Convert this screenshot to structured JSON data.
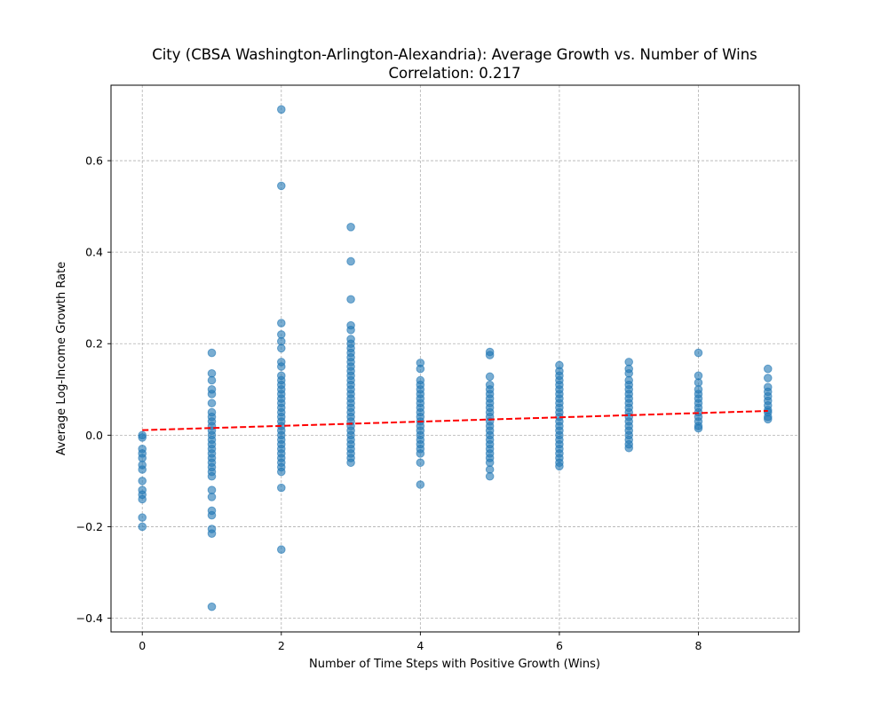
{
  "chart_data": {
    "type": "scatter",
    "title": "City (CBSA Washington-Arlington-Alexandria): Average Growth vs. Number of Wins",
    "subtitle": "Correlation: 0.217",
    "xlabel": "Number of Time Steps with Positive Growth (Wins)",
    "ylabel": "Average Log-Income Growth Rate",
    "xlim": [
      -0.45,
      9.45
    ],
    "ylim": [
      -0.43,
      0.765
    ],
    "xticks": [
      0,
      2,
      4,
      6,
      8
    ],
    "yticks": [
      -0.4,
      -0.2,
      0.0,
      0.2,
      0.4,
      0.6
    ],
    "xtick_labels": [
      "0",
      "2",
      "4",
      "6",
      "8"
    ],
    "ytick_labels": [
      "−0.4",
      "−0.2",
      "0.0",
      "0.2",
      "0.4",
      "0.6"
    ],
    "grid": true,
    "colors": {
      "points": "#1f77b4",
      "trend": "#ff0000"
    },
    "point_alpha": 0.6,
    "trend_line": {
      "style": "dashed",
      "x": [
        0,
        9
      ],
      "y": [
        0.011,
        0.053
      ]
    },
    "series": [
      {
        "values": [
          {
            "x": 0,
            "y": [
              0.0,
              -0.005,
              -0.03,
              -0.04,
              -0.05,
              -0.065,
              -0.075,
              -0.1,
              -0.12,
              -0.13,
              -0.14,
              -0.18,
              -0.2
            ]
          },
          {
            "x": 1,
            "y": [
              0.18,
              0.135,
              0.12,
              0.1,
              0.09,
              0.07,
              0.05,
              0.04,
              0.03,
              0.02,
              0.01,
              0.0,
              -0.01,
              -0.02,
              -0.03,
              -0.04,
              -0.05,
              -0.06,
              -0.07,
              -0.08,
              -0.09,
              -0.12,
              -0.135,
              -0.165,
              -0.175,
              -0.205,
              -0.215,
              -0.375
            ]
          },
          {
            "x": 2,
            "y": [
              0.712,
              0.545,
              0.245,
              0.22,
              0.205,
              0.19,
              0.16,
              0.15,
              0.13,
              0.12,
              0.11,
              0.1,
              0.09,
              0.08,
              0.07,
              0.06,
              0.05,
              0.04,
              0.03,
              0.02,
              0.01,
              0.0,
              -0.01,
              -0.02,
              -0.03,
              -0.04,
              -0.05,
              -0.06,
              -0.07,
              -0.08,
              -0.115,
              -0.25
            ]
          },
          {
            "x": 3,
            "y": [
              0.455,
              0.38,
              0.297,
              0.24,
              0.23,
              0.21,
              0.2,
              0.19,
              0.18,
              0.17,
              0.16,
              0.15,
              0.14,
              0.13,
              0.12,
              0.11,
              0.1,
              0.09,
              0.08,
              0.07,
              0.06,
              0.05,
              0.04,
              0.03,
              0.02,
              0.01,
              0.0,
              -0.01,
              -0.02,
              -0.03,
              -0.04,
              -0.05,
              -0.06
            ]
          },
          {
            "x": 4,
            "y": [
              0.158,
              0.145,
              0.12,
              0.11,
              0.1,
              0.09,
              0.08,
              0.07,
              0.06,
              0.05,
              0.04,
              0.03,
              0.02,
              0.01,
              0.0,
              -0.01,
              -0.02,
              -0.03,
              -0.04,
              -0.06,
              -0.108
            ]
          },
          {
            "x": 5,
            "y": [
              0.182,
              0.175,
              0.128,
              0.11,
              0.1,
              0.09,
              0.08,
              0.07,
              0.06,
              0.05,
              0.04,
              0.03,
              0.02,
              0.01,
              0.0,
              -0.01,
              -0.02,
              -0.03,
              -0.04,
              -0.05,
              -0.06,
              -0.075,
              -0.09
            ]
          },
          {
            "x": 6,
            "y": [
              0.153,
              0.14,
              0.13,
              0.12,
              0.11,
              0.1,
              0.09,
              0.08,
              0.07,
              0.06,
              0.05,
              0.04,
              0.03,
              0.02,
              0.01,
              0.0,
              -0.01,
              -0.02,
              -0.03,
              -0.04,
              -0.05,
              -0.06,
              -0.068
            ]
          },
          {
            "x": 7,
            "y": [
              0.16,
              0.145,
              0.135,
              0.12,
              0.11,
              0.1,
              0.09,
              0.08,
              0.07,
              0.06,
              0.05,
              0.04,
              0.03,
              0.02,
              0.01,
              0.0,
              -0.01,
              -0.02,
              -0.028
            ]
          },
          {
            "x": 8,
            "y": [
              0.18,
              0.13,
              0.115,
              0.1,
              0.09,
              0.08,
              0.07,
              0.06,
              0.05,
              0.04,
              0.03,
              0.02,
              0.015
            ]
          },
          {
            "x": 9,
            "y": [
              0.145,
              0.125,
              0.105,
              0.095,
              0.085,
              0.075,
              0.065,
              0.055,
              0.05,
              0.04,
              0.035
            ]
          }
        ]
      }
    ]
  }
}
